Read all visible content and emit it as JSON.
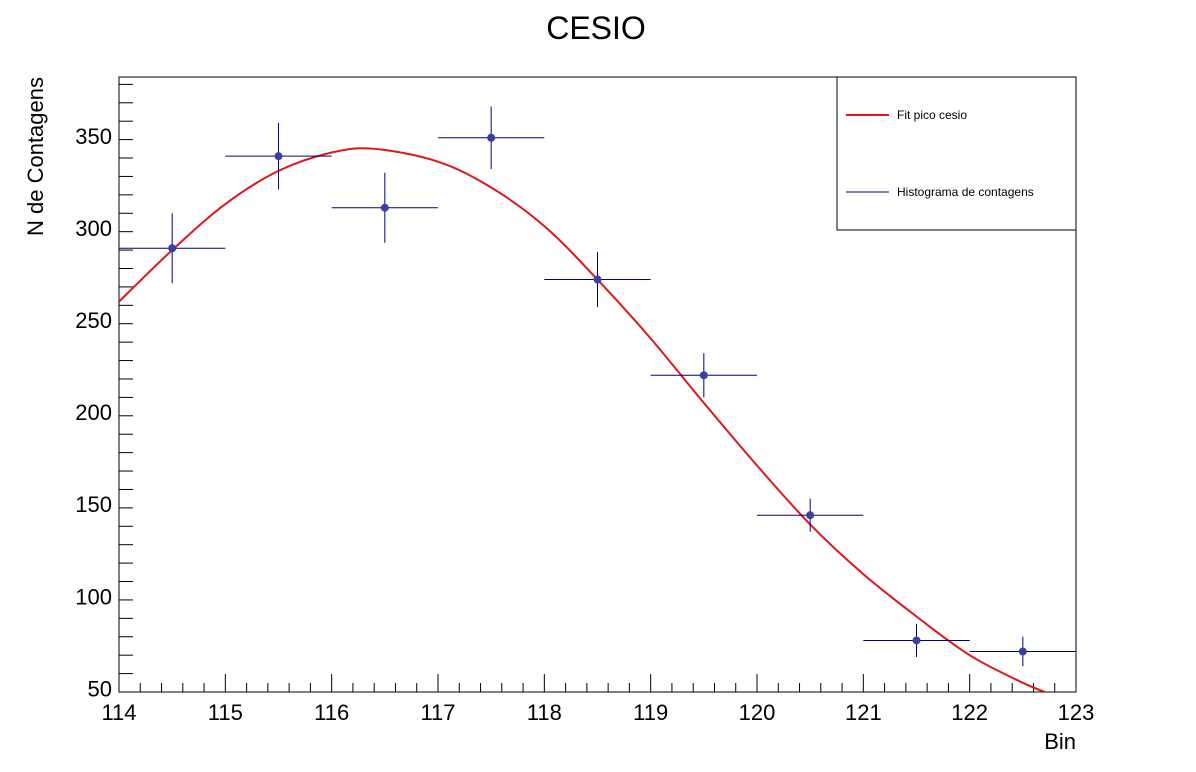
{
  "chart_data": {
    "type": "scatter",
    "title": "CESIO",
    "xlabel": "Bin",
    "ylabel": "N de Contagens",
    "xlim": [
      114,
      123
    ],
    "ylim": [
      48,
      382
    ],
    "x_ticks": [
      "114",
      "115",
      "116",
      "117",
      "118",
      "119",
      "120",
      "121",
      "122",
      "123"
    ],
    "y_ticks": [
      "50",
      "100",
      "150",
      "200",
      "250",
      "300",
      "350"
    ],
    "grid": false,
    "legend_position": "top-right",
    "series": [
      {
        "name": "Histograma de contagens",
        "type": "scatter-errorbars",
        "color": "#000080",
        "marker_color": "#3b3fa0",
        "points": [
          {
            "x": 114.5,
            "y": 289,
            "xerr": 0.5,
            "yerr": 19
          },
          {
            "x": 115.5,
            "y": 339,
            "xerr": 0.5,
            "yerr": 18
          },
          {
            "x": 116.5,
            "y": 311,
            "xerr": 0.5,
            "yerr": 19
          },
          {
            "x": 117.5,
            "y": 349,
            "xerr": 0.5,
            "yerr": 17
          },
          {
            "x": 118.5,
            "y": 272,
            "xerr": 0.5,
            "yerr": 15
          },
          {
            "x": 119.5,
            "y": 220,
            "xerr": 0.5,
            "yerr": 12
          },
          {
            "x": 120.5,
            "y": 144,
            "xerr": 0.5,
            "yerr": 9
          },
          {
            "x": 121.5,
            "y": 76,
            "xerr": 0.5,
            "yerr": 9
          },
          {
            "x": 122.5,
            "y": 70,
            "xerr": 0.5,
            "yerr": 8
          }
        ]
      },
      {
        "name": "Fit pico cesio",
        "type": "line",
        "color": "#e0161b",
        "x": [
          114.0,
          114.5,
          115.0,
          115.5,
          116.0,
          116.4,
          117.0,
          117.5,
          118.0,
          118.5,
          119.0,
          119.5,
          120.0,
          120.5,
          121.0,
          121.5,
          122.0,
          122.5,
          122.8
        ],
        "y": [
          260,
          288,
          313,
          331,
          341,
          343,
          336,
          322,
          301,
          272,
          240,
          205,
          171,
          139,
          112,
          89,
          68,
          53,
          46
        ]
      }
    ]
  }
}
